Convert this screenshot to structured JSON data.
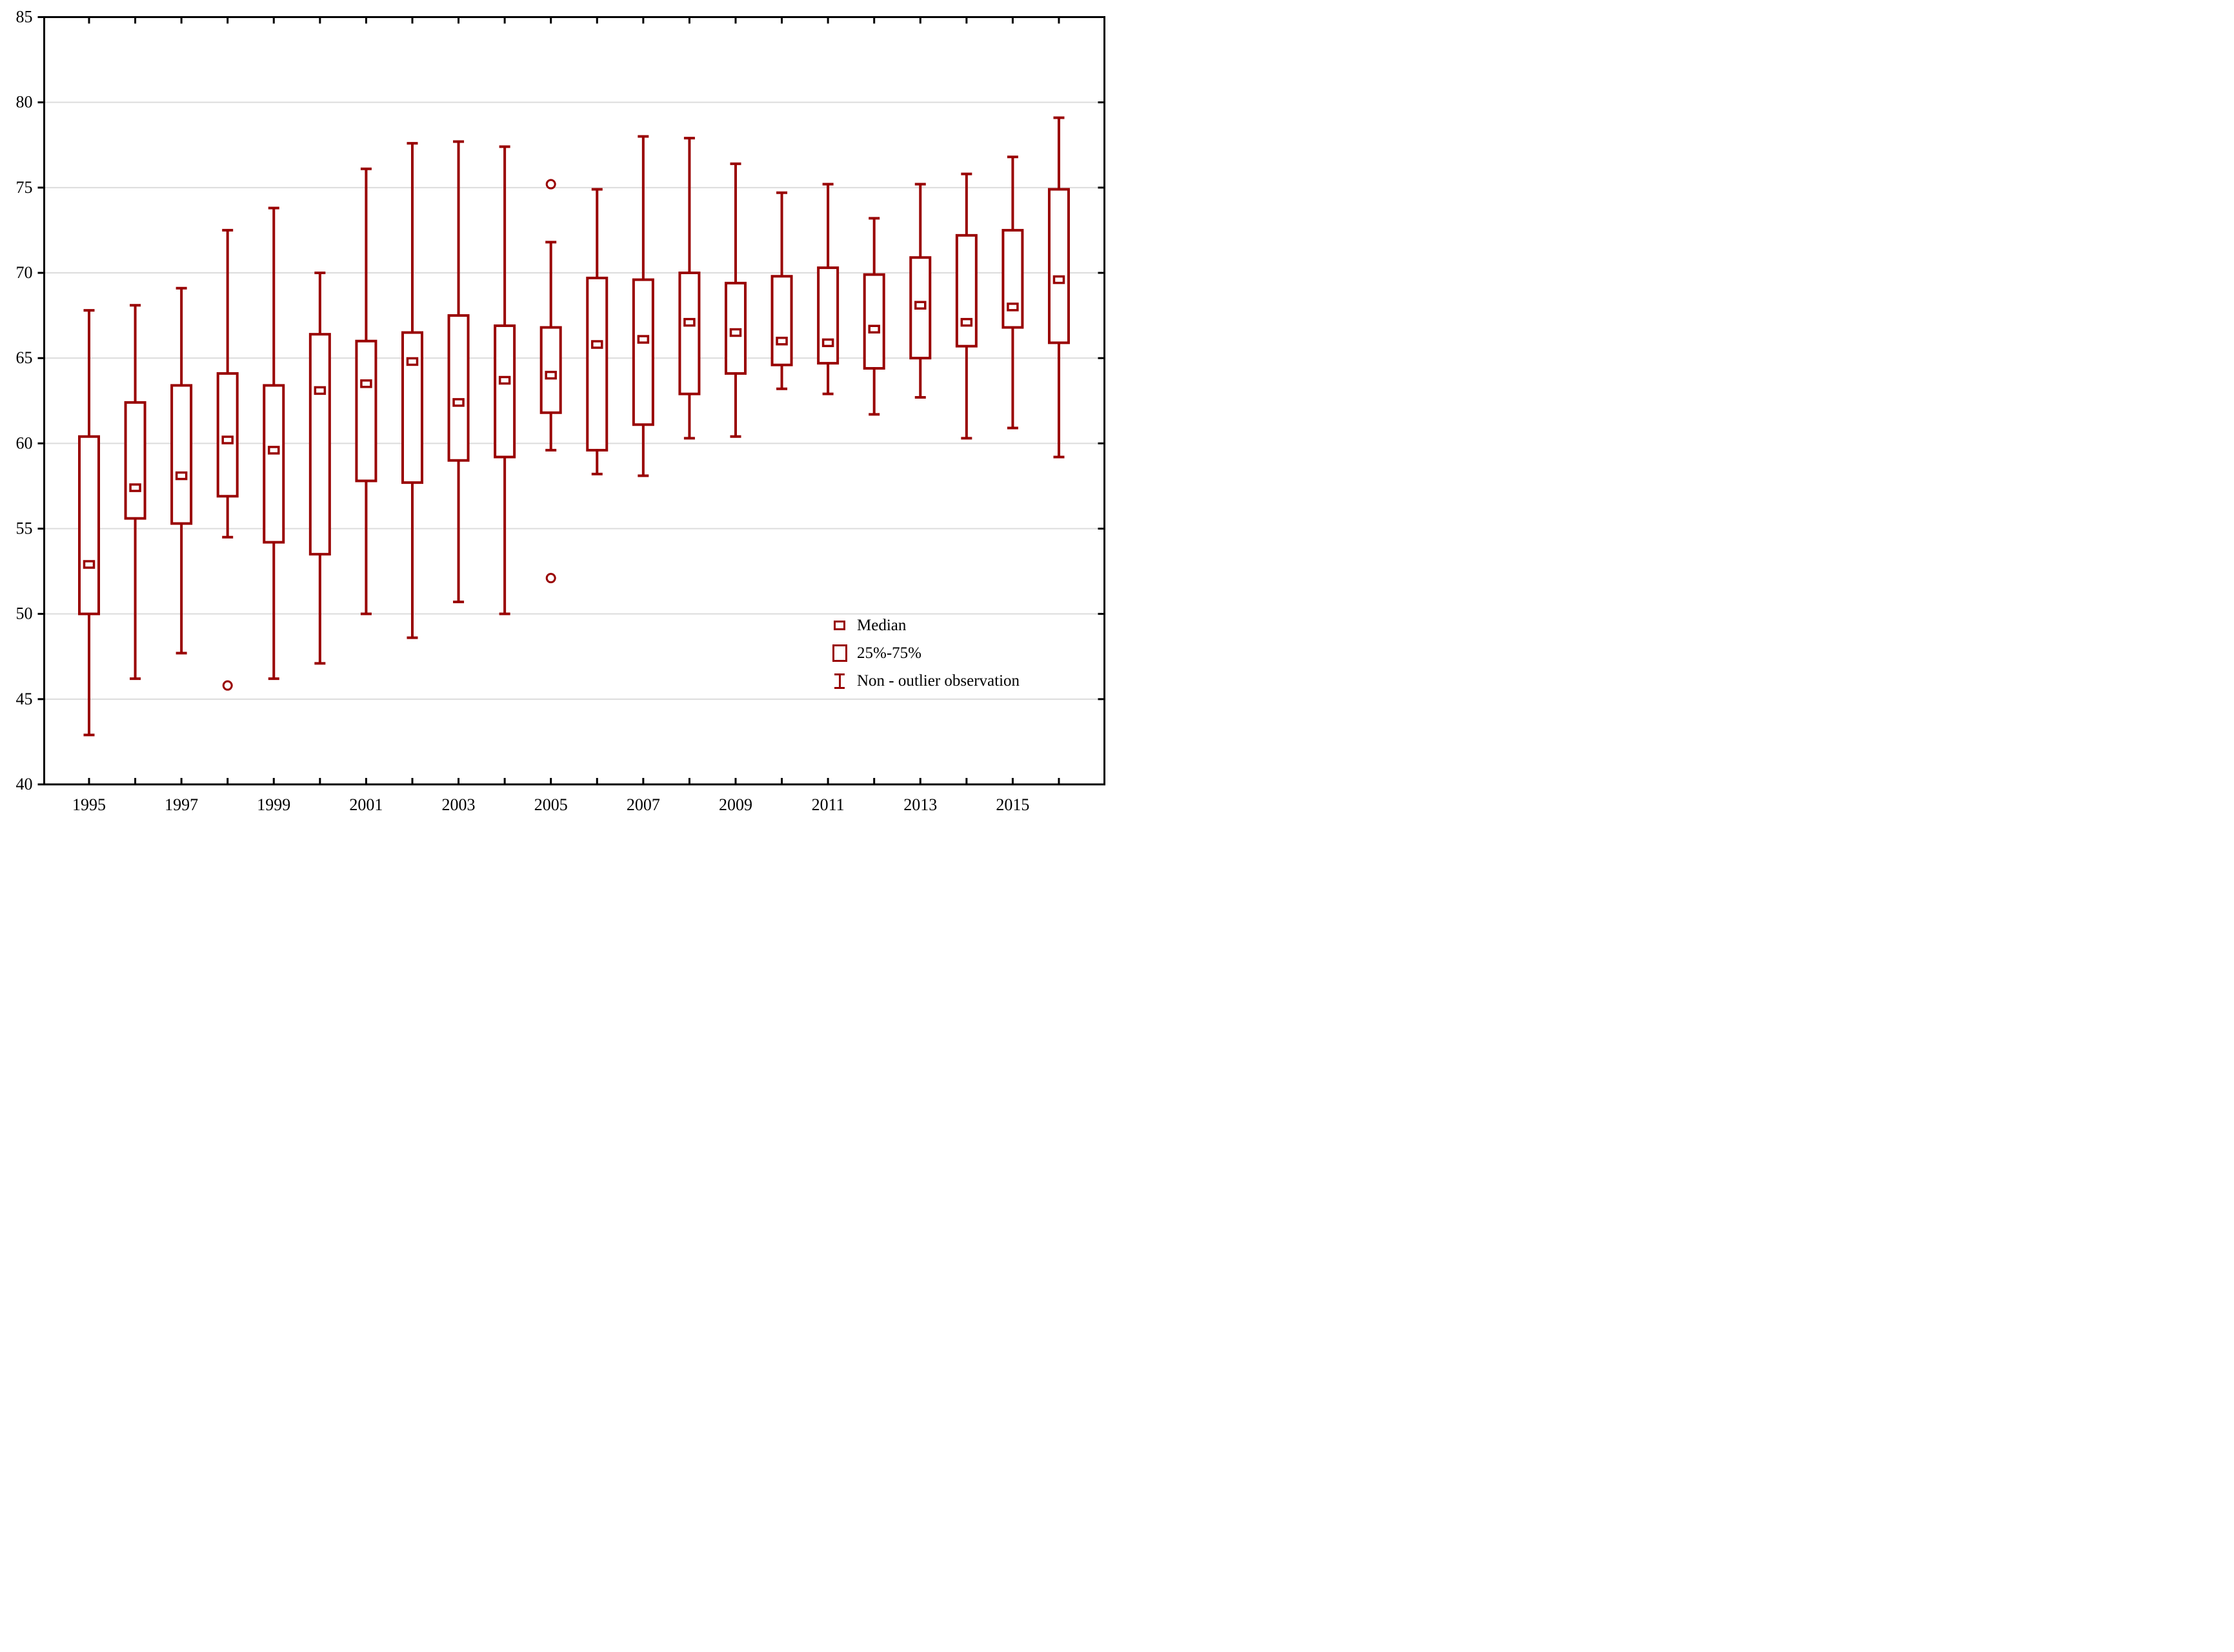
{
  "chart_data": {
    "type": "box",
    "title": "",
    "xlabel": "",
    "ylabel": "",
    "ylim": [
      40,
      85
    ],
    "yticks": [
      40,
      45,
      50,
      55,
      60,
      65,
      70,
      75,
      80,
      85
    ],
    "xtick_labeled_years": [
      1995,
      1997,
      1999,
      2001,
      2003,
      2005,
      2007,
      2009,
      2011,
      2013,
      2015
    ],
    "grid": "horizontal",
    "legend_position": "bottom-right-inside",
    "series": [
      {
        "year": 1995,
        "low": 42.9,
        "q1": 50.0,
        "median": 52.9,
        "q3": 60.4,
        "high": 67.8,
        "outliers": []
      },
      {
        "year": 1996,
        "low": 46.2,
        "q1": 55.6,
        "median": 57.4,
        "q3": 62.4,
        "high": 68.1,
        "outliers": []
      },
      {
        "year": 1997,
        "low": 47.7,
        "q1": 55.3,
        "median": 58.1,
        "q3": 63.4,
        "high": 69.1,
        "outliers": []
      },
      {
        "year": 1998,
        "low": 54.5,
        "q1": 56.9,
        "median": 60.2,
        "q3": 64.1,
        "high": 72.5,
        "outliers": [
          45.8
        ]
      },
      {
        "year": 1999,
        "low": 46.2,
        "q1": 54.2,
        "median": 59.6,
        "q3": 63.4,
        "high": 73.8,
        "outliers": []
      },
      {
        "year": 2000,
        "low": 47.1,
        "q1": 53.5,
        "median": 63.1,
        "q3": 66.4,
        "high": 70.0,
        "outliers": []
      },
      {
        "year": 2001,
        "low": 50.0,
        "q1": 57.8,
        "median": 63.5,
        "q3": 66.0,
        "high": 76.1,
        "outliers": []
      },
      {
        "year": 2002,
        "low": 48.6,
        "q1": 57.7,
        "median": 64.8,
        "q3": 66.5,
        "high": 77.6,
        "outliers": []
      },
      {
        "year": 2003,
        "low": 50.7,
        "q1": 59.0,
        "median": 62.4,
        "q3": 67.5,
        "high": 77.7,
        "outliers": []
      },
      {
        "year": 2004,
        "low": 50.0,
        "q1": 59.2,
        "median": 63.7,
        "q3": 66.9,
        "high": 77.4,
        "outliers": []
      },
      {
        "year": 2005,
        "low": 59.6,
        "q1": 61.8,
        "median": 64.0,
        "q3": 66.8,
        "high": 71.8,
        "outliers": [
          75.2,
          52.1
        ]
      },
      {
        "year": 2006,
        "low": 58.2,
        "q1": 59.6,
        "median": 65.8,
        "q3": 69.7,
        "high": 74.9,
        "outliers": []
      },
      {
        "year": 2007,
        "low": 58.1,
        "q1": 61.1,
        "median": 66.1,
        "q3": 69.6,
        "high": 78.0,
        "outliers": []
      },
      {
        "year": 2008,
        "low": 60.3,
        "q1": 62.9,
        "median": 67.1,
        "q3": 70.0,
        "high": 77.9,
        "outliers": []
      },
      {
        "year": 2009,
        "low": 60.4,
        "q1": 64.1,
        "median": 66.5,
        "q3": 69.4,
        "high": 76.4,
        "outliers": []
      },
      {
        "year": 2010,
        "low": 63.2,
        "q1": 64.6,
        "median": 66.0,
        "q3": 69.8,
        "high": 74.7,
        "outliers": []
      },
      {
        "year": 2011,
        "low": 62.9,
        "q1": 64.7,
        "median": 65.9,
        "q3": 70.3,
        "high": 75.2,
        "outliers": []
      },
      {
        "year": 2012,
        "low": 61.7,
        "q1": 64.4,
        "median": 66.7,
        "q3": 69.9,
        "high": 73.2,
        "outliers": []
      },
      {
        "year": 2013,
        "low": 62.7,
        "q1": 65.0,
        "median": 68.1,
        "q3": 70.9,
        "high": 75.2,
        "outliers": []
      },
      {
        "year": 2014,
        "low": 60.3,
        "q1": 65.7,
        "median": 67.1,
        "q3": 72.2,
        "high": 75.8,
        "outliers": []
      },
      {
        "year": 2015,
        "low": 60.9,
        "q1": 66.8,
        "median": 68.0,
        "q3": 72.5,
        "high": 76.8,
        "outliers": []
      },
      {
        "year": 2016,
        "low": 59.2,
        "q1": 65.9,
        "median": 69.6,
        "q3": 74.9,
        "high": 79.1,
        "outliers": []
      }
    ]
  },
  "legend": {
    "median_label": "Median",
    "box_label": "25%-75%",
    "whisker_label": "Non - outlier observation"
  },
  "colors": {
    "series": "#990000",
    "grid": "#dcdcdc",
    "axis": "#000000",
    "background": "#ffffff"
  }
}
